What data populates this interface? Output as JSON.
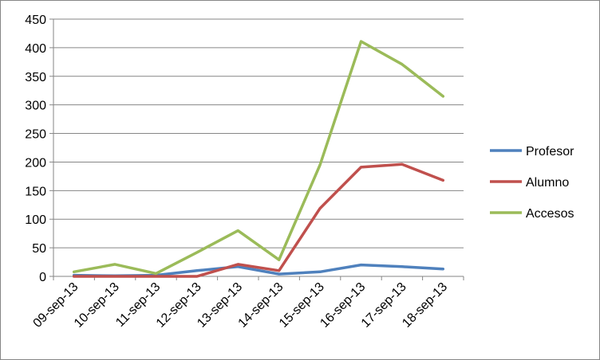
{
  "chart_data": {
    "type": "line",
    "categories": [
      "09-sep-13",
      "10-sep-13",
      "11-sep-13",
      "12-sep-13",
      "13-sep-13",
      "14-sep-13",
      "15-sep-13",
      "16-sep-13",
      "17-sep-13",
      "18-sep-13"
    ],
    "series": [
      {
        "name": "Profesor",
        "color": "#4F81BD",
        "values": [
          2,
          1,
          2,
          10,
          17,
          4,
          8,
          20,
          17,
          13
        ]
      },
      {
        "name": "Alumno",
        "color": "#C0504D",
        "values": [
          0,
          0,
          0,
          0,
          21,
          10,
          119,
          191,
          196,
          168
        ]
      },
      {
        "name": "Accesos",
        "color": "#9BBB59",
        "values": [
          8,
          21,
          5,
          42,
          80,
          29,
          195,
          411,
          371,
          315
        ]
      }
    ],
    "ylim": [
      0,
      450
    ],
    "yticks": [
      0,
      50,
      100,
      150,
      200,
      250,
      300,
      350,
      400,
      450
    ],
    "grid": "horizontal",
    "legend": "right",
    "title": "",
    "xlabel": "",
    "ylabel": ""
  }
}
